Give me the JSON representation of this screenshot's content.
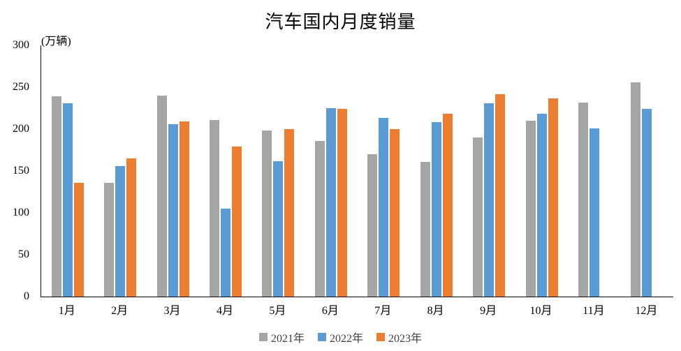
{
  "chart_data": {
    "type": "bar",
    "title": "汽车国内月度销量",
    "y_unit_label": "(万辆)",
    "categories": [
      "1月",
      "2月",
      "3月",
      "4月",
      "5月",
      "6月",
      "7月",
      "8月",
      "9月",
      "10月",
      "11月",
      "12月"
    ],
    "series": [
      {
        "name": "2021年",
        "color": "#A5A5A5",
        "values": [
          239,
          136,
          240,
          211,
          198,
          186,
          170,
          161,
          190,
          210,
          232,
          256
        ]
      },
      {
        "name": "2022年",
        "color": "#5B9BD5",
        "values": [
          231,
          156,
          206,
          105,
          162,
          225,
          213,
          208,
          231,
          218,
          201,
          224
        ]
      },
      {
        "name": "2023年",
        "color": "#ED7D31",
        "values": [
          136,
          165,
          209,
          179,
          200,
          224,
          200,
          218,
          242,
          237,
          null,
          null
        ]
      }
    ],
    "ylim": [
      0,
      300
    ],
    "yticks": [
      0,
      50,
      100,
      150,
      200,
      250,
      300
    ],
    "xlabel": "",
    "ylabel": "(万辆)",
    "grid": false,
    "legend_position": "bottom"
  }
}
